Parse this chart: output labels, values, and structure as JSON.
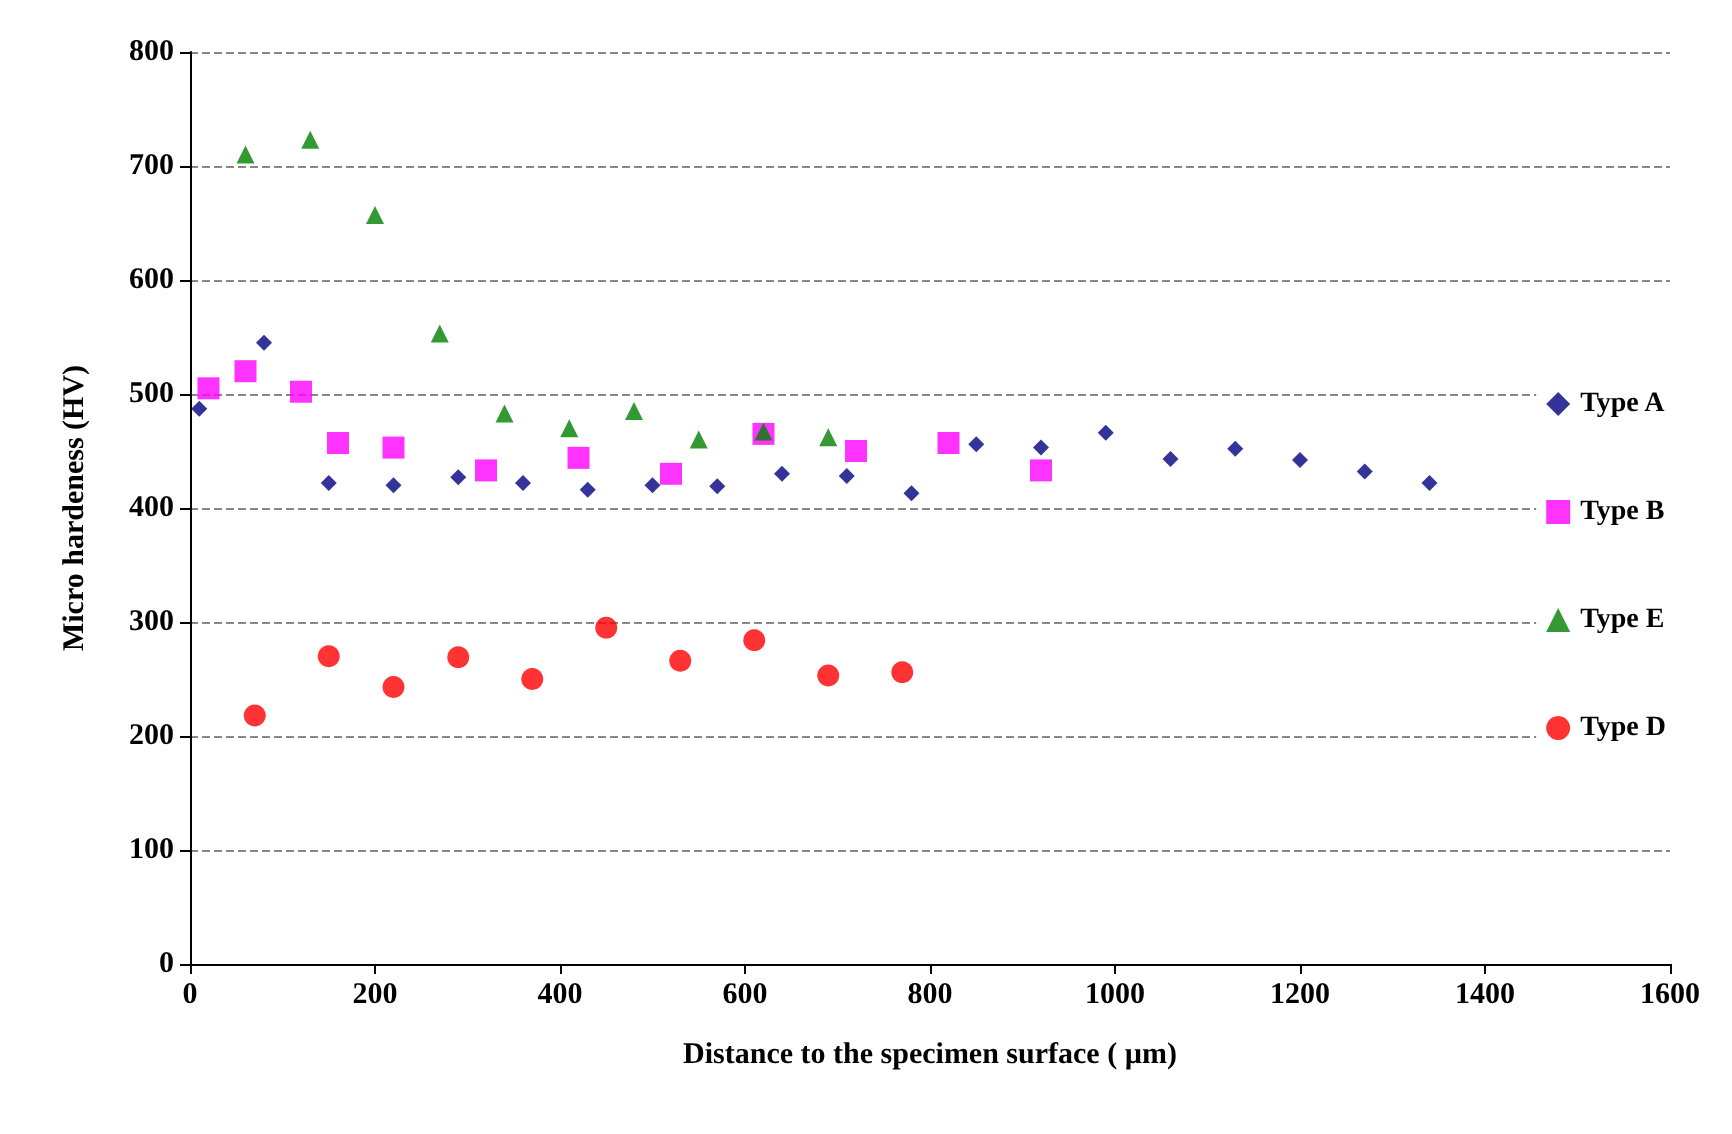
{
  "chart_data": {
    "type": "scatter",
    "xlabel": "Distance to the specimen surface ( µm)",
    "ylabel": "Micro hardeness (HV)",
    "xlim": [
      0,
      1600
    ],
    "xticks": [
      0,
      200,
      400,
      600,
      800,
      1000,
      1200,
      1400,
      1600
    ],
    "ylim": [
      0,
      800
    ],
    "yticks": [
      0,
      100,
      200,
      300,
      400,
      500,
      600,
      700,
      800
    ],
    "grid": "y",
    "legend": "right",
    "series": [
      {
        "name": "Type A",
        "color": "#000080",
        "marker": "diamond",
        "x": [
          10,
          80,
          150,
          220,
          290,
          360,
          430,
          500,
          570,
          640,
          710,
          780,
          850,
          920,
          990,
          1060,
          1130,
          1200,
          1270,
          1340
        ],
        "values": [
          487,
          545,
          422,
          420,
          427,
          422,
          416,
          420,
          419,
          430,
          428,
          413,
          456,
          453,
          466,
          443,
          452,
          442,
          432,
          422
        ]
      },
      {
        "name": "Type B",
        "color": "#ff00ff",
        "marker": "square",
        "x": [
          20,
          60,
          120,
          160,
          220,
          320,
          420,
          520,
          620,
          720,
          820,
          920
        ],
        "values": [
          505,
          520,
          502,
          457,
          453,
          433,
          444,
          430,
          465,
          450,
          457,
          433
        ]
      },
      {
        "name": "Type E",
        "color": "#008000",
        "marker": "triangle",
        "x": [
          60,
          130,
          200,
          270,
          340,
          410,
          480,
          550,
          620,
          690
        ],
        "values": [
          710,
          723,
          657,
          553,
          483,
          470,
          485,
          460,
          467,
          462
        ]
      },
      {
        "name": "Type D",
        "color": "#ff0000",
        "marker": "circle",
        "x": [
          70,
          150,
          220,
          290,
          370,
          450,
          530,
          610,
          690,
          770
        ],
        "values": [
          218,
          270,
          243,
          269,
          250,
          295,
          266,
          284,
          253,
          256
        ]
      }
    ]
  }
}
